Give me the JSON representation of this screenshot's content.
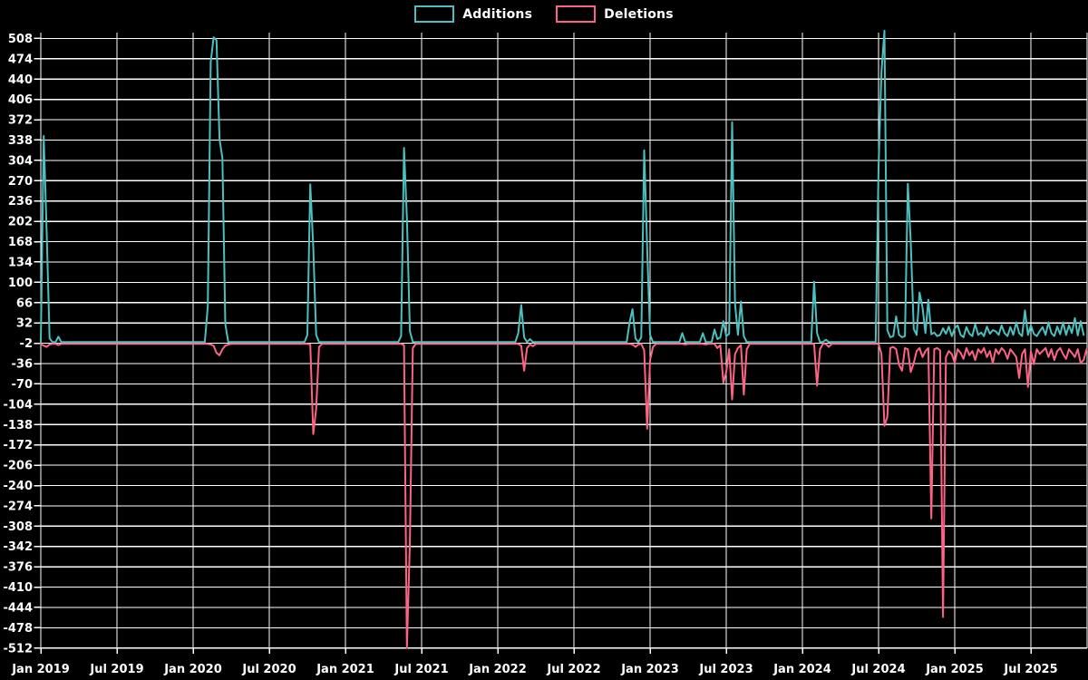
{
  "legend": {
    "items": [
      {
        "label": "Additions",
        "color": "#4BC0C0"
      },
      {
        "label": "Deletions",
        "color": "#FF6384"
      }
    ]
  },
  "colors": {
    "background": "#000000",
    "grid": "#ffffff",
    "text": "#ffffff",
    "additions": "#4BC0C0",
    "deletions": "#FF6384"
  },
  "chart_data": {
    "type": "line",
    "x_unit": "week",
    "x_tick_labels": [
      "Jan 2019",
      "Jul 2019",
      "Jan 2020",
      "Jul 2020",
      "Jan 2021",
      "Jul 2021",
      "Jan 2022",
      "Jul 2022",
      "Jan 2023",
      "Jul 2023",
      "Jan 2024",
      "Jul 2024",
      "Jan 2025",
      "Jul 2025"
    ],
    "y_ticks": [
      508,
      474,
      440,
      406,
      372,
      338,
      304,
      270,
      236,
      202,
      168,
      134,
      100,
      66,
      32,
      -2,
      -36,
      -70,
      -104,
      -138,
      -172,
      -206,
      -240,
      -274,
      -308,
      -342,
      -376,
      -410,
      -444,
      -478,
      -512
    ],
    "ylim": [
      -512,
      508
    ],
    "grid": true,
    "legend_position": "top",
    "series": [
      {
        "name": "Additions",
        "color": "#4BC0C0",
        "values": [
          0,
          345,
          183,
          6,
          0,
          0,
          9,
          0,
          0,
          0,
          0,
          0,
          0,
          0,
          0,
          0,
          0,
          0,
          0,
          0,
          0,
          0,
          0,
          0,
          0,
          0,
          0,
          0,
          0,
          0,
          0,
          0,
          0,
          0,
          0,
          0,
          0,
          0,
          0,
          0,
          0,
          0,
          0,
          0,
          0,
          0,
          0,
          0,
          0,
          0,
          0,
          0,
          0,
          0,
          0,
          0,
          0,
          60,
          468,
          510,
          505,
          340,
          308,
          30,
          0,
          0,
          0,
          0,
          0,
          0,
          0,
          0,
          0,
          0,
          0,
          0,
          0,
          0,
          0,
          0,
          0,
          0,
          0,
          0,
          0,
          0,
          0,
          0,
          0,
          0,
          0,
          12,
          264,
          159,
          12,
          0,
          0,
          0,
          0,
          0,
          0,
          0,
          0,
          0,
          0,
          0,
          0,
          0,
          0,
          0,
          0,
          0,
          0,
          0,
          0,
          0,
          0,
          0,
          0,
          0,
          0,
          0,
          0,
          10,
          325,
          207,
          18,
          0,
          0,
          0,
          0,
          0,
          0,
          0,
          0,
          0,
          0,
          0,
          0,
          0,
          0,
          0,
          0,
          0,
          0,
          0,
          0,
          0,
          0,
          0,
          0,
          0,
          0,
          0,
          0,
          0,
          0,
          0,
          0,
          0,
          0,
          0,
          0,
          15,
          62,
          8,
          0,
          5,
          0,
          0,
          0,
          0,
          0,
          0,
          0,
          0,
          0,
          0,
          0,
          0,
          0,
          0,
          0,
          0,
          0,
          0,
          0,
          0,
          0,
          0,
          0,
          0,
          0,
          0,
          0,
          0,
          0,
          0,
          0,
          0,
          0,
          33,
          55,
          6,
          0,
          8,
          321,
          157,
          12,
          0,
          0,
          0,
          0,
          0,
          0,
          0,
          0,
          0,
          0,
          15,
          0,
          0,
          0,
          0,
          0,
          0,
          15,
          0,
          0,
          0,
          21,
          5,
          8,
          35,
          10,
          14,
          368,
          64,
          12,
          68,
          10,
          0,
          0,
          0,
          0,
          0,
          0,
          0,
          0,
          0,
          0,
          0,
          0,
          0,
          0,
          0,
          0,
          0,
          0,
          0,
          0,
          0,
          0,
          0,
          101,
          15,
          0,
          0,
          4,
          0,
          0,
          0,
          0,
          0,
          0,
          0,
          0,
          0,
          0,
          0,
          0,
          0,
          0,
          0,
          0,
          0,
          293,
          452,
          521,
          20,
          8,
          10,
          43,
          12,
          8,
          10,
          265,
          167,
          22,
          12,
          83,
          58,
          15,
          71,
          13,
          16,
          10,
          12,
          23,
          14,
          26,
          10,
          23,
          28,
          12,
          8,
          25,
          14,
          10,
          30,
          12,
          16,
          10,
          26,
          14,
          20,
          18,
          12,
          28,
          15,
          10,
          25,
          12,
          33,
          15,
          10,
          53,
          12,
          28,
          14,
          10,
          18,
          25,
          12,
          33,
          15,
          10,
          26,
          13,
          33,
          12,
          28,
          15,
          40,
          11,
          35,
          12
        ]
      },
      {
        "name": "Deletions",
        "color": "#FF6384",
        "values": [
          -3,
          -6,
          -8,
          -4,
          -3,
          -3,
          -5,
          -3,
          -3,
          -3,
          -3,
          -3,
          -3,
          -3,
          -3,
          -3,
          -3,
          -3,
          -3,
          -3,
          -3,
          -3,
          -3,
          -3,
          -3,
          -3,
          -3,
          -3,
          -3,
          -3,
          -3,
          -3,
          -3,
          -3,
          -3,
          -3,
          -3,
          -3,
          -3,
          -3,
          -3,
          -3,
          -3,
          -3,
          -3,
          -3,
          -3,
          -3,
          -3,
          -3,
          -3,
          -3,
          -3,
          -3,
          -3,
          -3,
          -3,
          -3,
          -4,
          -6,
          -18,
          -22,
          -12,
          -6,
          -4,
          -3,
          -3,
          -3,
          -3,
          -3,
          -3,
          -3,
          -3,
          -3,
          -3,
          -3,
          -3,
          -3,
          -3,
          -3,
          -3,
          -3,
          -3,
          -3,
          -3,
          -3,
          -3,
          -3,
          -3,
          -3,
          -3,
          -3,
          -4,
          -154,
          -112,
          -8,
          -3,
          -3,
          -3,
          -3,
          -3,
          -3,
          -3,
          -3,
          -3,
          -3,
          -3,
          -3,
          -3,
          -3,
          -3,
          -3,
          -3,
          -3,
          -3,
          -3,
          -3,
          -3,
          -3,
          -3,
          -3,
          -3,
          -3,
          -3,
          -5,
          -512,
          -333,
          -10,
          -3,
          -3,
          -3,
          -3,
          -3,
          -3,
          -3,
          -3,
          -3,
          -3,
          -3,
          -3,
          -3,
          -3,
          -3,
          -3,
          -3,
          -3,
          -3,
          -3,
          -3,
          -3,
          -3,
          -3,
          -3,
          -3,
          -3,
          -3,
          -3,
          -3,
          -3,
          -3,
          -3,
          -3,
          -3,
          -3,
          -6,
          -48,
          -10,
          -4,
          -7,
          -3,
          -3,
          -3,
          -3,
          -3,
          -3,
          -3,
          -3,
          -3,
          -3,
          -3,
          -3,
          -3,
          -3,
          -3,
          -3,
          -3,
          -3,
          -3,
          -3,
          -3,
          -3,
          -3,
          -3,
          -3,
          -3,
          -3,
          -3,
          -3,
          -3,
          -3,
          -3,
          -3,
          -4,
          -8,
          -4,
          -3,
          -14,
          -145,
          -30,
          -8,
          -3,
          -3,
          -3,
          -3,
          -3,
          -3,
          -3,
          -3,
          -3,
          -3,
          -4,
          -3,
          -3,
          -3,
          -3,
          -3,
          -3,
          -4,
          -3,
          -3,
          -3,
          -10,
          -5,
          -68,
          -50,
          -12,
          -96,
          -20,
          -10,
          -5,
          -88,
          -12,
          -3,
          -3,
          -3,
          -3,
          -3,
          -3,
          -3,
          -3,
          -3,
          -3,
          -3,
          -3,
          -3,
          -3,
          -3,
          -3,
          -3,
          -3,
          -3,
          -3,
          -3,
          -3,
          -3,
          -73,
          -12,
          -3,
          -3,
          -8,
          -3,
          -3,
          -3,
          -3,
          -3,
          -3,
          -3,
          -3,
          -3,
          -3,
          -3,
          -3,
          -3,
          -3,
          -3,
          -3,
          -3,
          -20,
          -140,
          -125,
          -10,
          -8,
          -12,
          -38,
          -48,
          -10,
          -12,
          -50,
          -35,
          -15,
          -10,
          -25,
          -15,
          -10,
          -295,
          -12,
          -10,
          -14,
          -460,
          -25,
          -15,
          -20,
          -35,
          -12,
          -18,
          -28,
          -10,
          -22,
          -15,
          -30,
          -12,
          -18,
          -10,
          -25,
          -15,
          -35,
          -12,
          -20,
          -10,
          -15,
          -28,
          -12,
          -18,
          -25,
          -60,
          -20,
          -12,
          -75,
          -15,
          -37,
          -12,
          -20,
          -15,
          -10,
          -25,
          -12,
          -30,
          -15,
          -10,
          -20,
          -28,
          -12,
          -18,
          -25,
          -12,
          -35,
          -30,
          -12
        ]
      }
    ]
  }
}
